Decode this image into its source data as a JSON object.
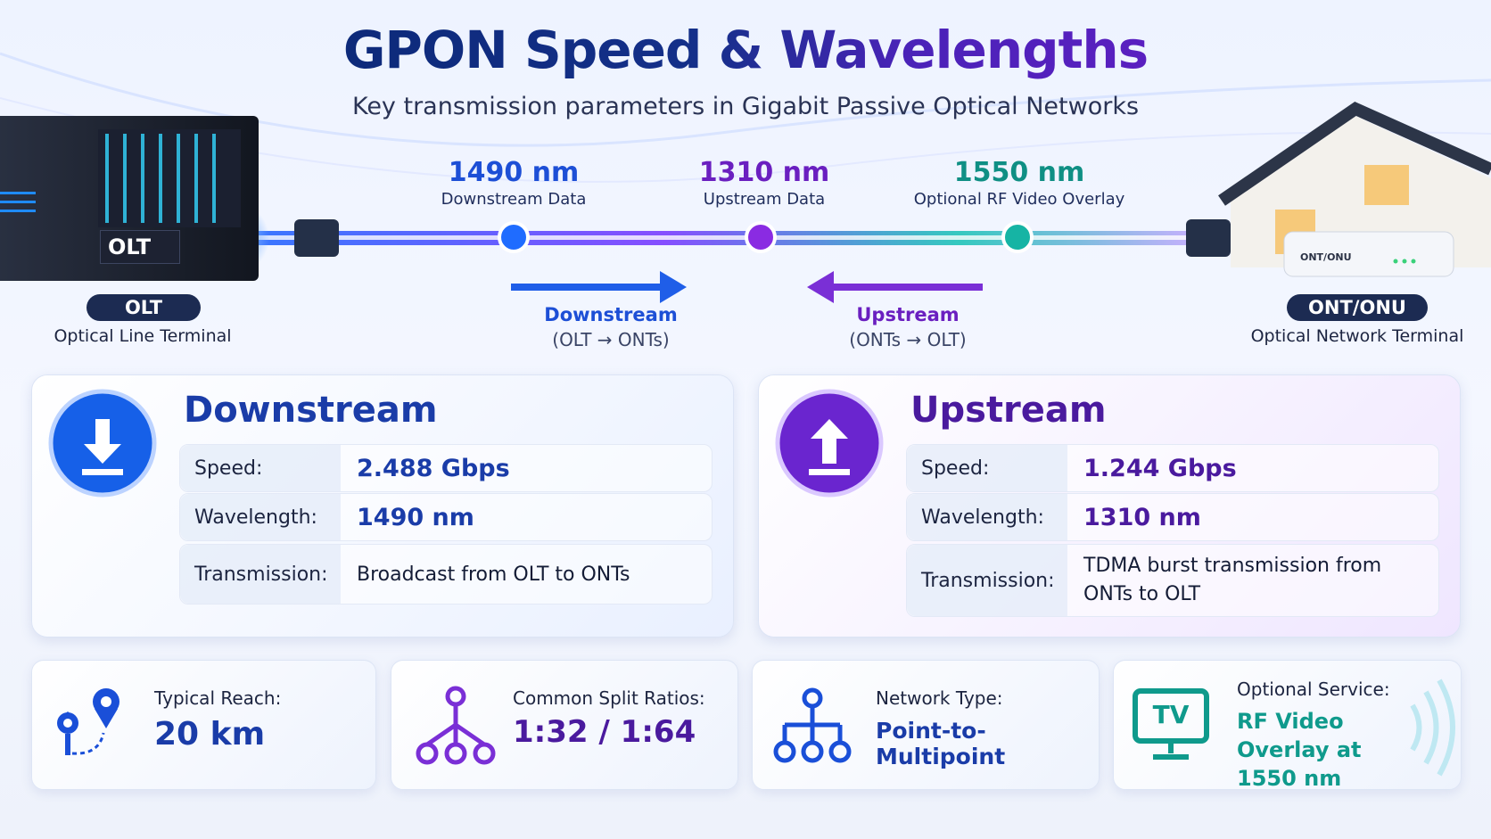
{
  "header": {
    "title": "GPON Speed & Wavelengths",
    "subtitle": "Key transmission parameters in Gigabit Passive Optical Networks"
  },
  "devices": {
    "olt": {
      "device_label": "OLT",
      "badge": "OLT",
      "description": "Optical Line Terminal"
    },
    "ont": {
      "device_label": "ONT/ONU",
      "badge": "ONT/ONU",
      "description": "Optical Network Terminal"
    }
  },
  "wavelengths": [
    {
      "value": "1490 nm",
      "label": "Downstream Data"
    },
    {
      "value": "1310 nm",
      "label": "Upstream Data"
    },
    {
      "value": "1550 nm",
      "label": "Optional RF Video Overlay"
    }
  ],
  "directions": [
    {
      "label": "Downstream",
      "detail": "(OLT → ONTs)"
    },
    {
      "label": "Upstream",
      "detail": "(ONTs → OLT)"
    }
  ],
  "panels": [
    {
      "title": "Downstream",
      "rows": [
        [
          "Speed:",
          "2.488 Gbps"
        ],
        [
          "Wavelength:",
          "1490 nm"
        ],
        [
          "Transmission:",
          "Broadcast from OLT to ONTs"
        ]
      ]
    },
    {
      "title": "Upstream",
      "rows": [
        [
          "Speed:",
          "1.244 Gbps"
        ],
        [
          "Wavelength:",
          "1310 nm"
        ],
        [
          "Transmission:",
          "TDMA burst transmission from ONTs to OLT"
        ]
      ]
    }
  ],
  "facts": [
    {
      "label": "Typical Reach:",
      "value": "20 km"
    },
    {
      "label": "Common Split Ratios:",
      "value": "1:32 / 1:64"
    },
    {
      "label": "Network Type:",
      "value": "Point-to-Multipoint"
    },
    {
      "label": "Optional Service:",
      "value": "RF Video Overlay at 1550 nm",
      "icon_text": "TV"
    }
  ]
}
